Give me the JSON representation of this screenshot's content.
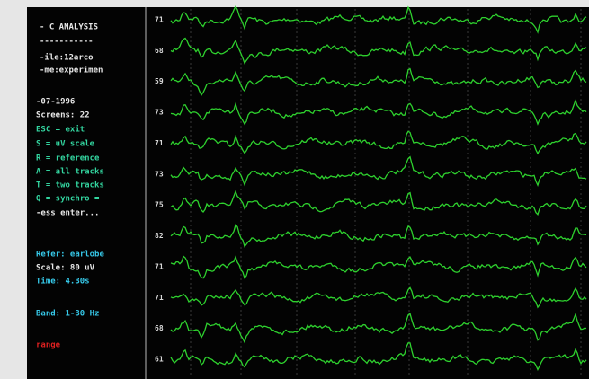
{
  "sidebar": {
    "header": [
      "- C ANALYSIS",
      "-----------",
      "-ile:12arco",
      "-me:experimen",
      "-07-1996",
      "Screens: 22"
    ],
    "commands": [
      "ESC = exit",
      "S = uV scale",
      "R = reference",
      "A = all tracks",
      "T = two tracks",
      "Q = synchro ="
    ],
    "prompt": "-ess enter...",
    "info": [
      "Refer: earlobe",
      "Scale: 80 uV",
      "Time: 4.30s",
      "Band: 1-30 Hz"
    ],
    "status": "range"
  },
  "channels": [
    {
      "label": "71"
    },
    {
      "label": "68"
    },
    {
      "label": "59"
    },
    {
      "label": "73"
    },
    {
      "label": "71"
    },
    {
      "label": "73"
    },
    {
      "label": "75"
    },
    {
      "label": "82"
    },
    {
      "label": "71"
    },
    {
      "label": "71"
    },
    {
      "label": "68"
    },
    {
      "label": "61"
    }
  ]
}
